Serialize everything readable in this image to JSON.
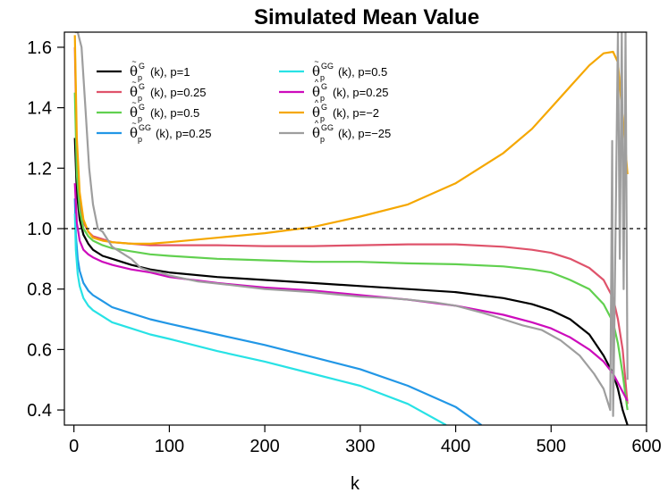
{
  "chart_data": {
    "type": "line",
    "title": "Simulated Mean Value",
    "xlabel": "k",
    "ylabel": "",
    "xlim": [
      -10,
      600
    ],
    "ylim": [
      0.35,
      1.65
    ],
    "xticks": [
      "0",
      "100",
      "200",
      "300",
      "400",
      "500",
      "600"
    ],
    "yticks": [
      "0.4",
      "0.6",
      "0.8",
      "1.0",
      "1.2",
      "1.4",
      "1.6"
    ],
    "reference_line": {
      "y": 1.0,
      "style": "dashed",
      "color": "#000000"
    },
    "series": [
      {
        "name": "θ̃pG (k), p=1",
        "symbol": "θ",
        "accent": "~",
        "sup": "G",
        "sub": "p",
        "suffix": "(k),  p=1",
        "color": "#000000",
        "x": [
          1,
          3,
          6,
          10,
          15,
          20,
          30,
          40,
          60,
          80,
          100,
          150,
          200,
          250,
          300,
          350,
          400,
          450,
          480,
          500,
          520,
          540,
          555,
          565,
          570,
          575,
          580
        ],
        "y": [
          1.3,
          1.12,
          1.03,
          0.98,
          0.95,
          0.93,
          0.91,
          0.9,
          0.88,
          0.865,
          0.855,
          0.84,
          0.83,
          0.82,
          0.81,
          0.8,
          0.79,
          0.77,
          0.75,
          0.73,
          0.7,
          0.65,
          0.58,
          0.52,
          0.47,
          0.4,
          0.35
        ]
      },
      {
        "name": "θ̃pG (k), p=0.25",
        "symbol": "θ",
        "accent": "~",
        "sup": "G",
        "sub": "p",
        "suffix": "(k),  p=0.25",
        "color": "#DF536B",
        "x": [
          1,
          3,
          6,
          10,
          15,
          20,
          30,
          40,
          60,
          80,
          100,
          150,
          200,
          250,
          300,
          350,
          400,
          450,
          480,
          500,
          520,
          540,
          555,
          565,
          570,
          575,
          580
        ],
        "y": [
          1.6,
          1.25,
          1.1,
          1.02,
          0.99,
          0.975,
          0.965,
          0.955,
          0.95,
          0.945,
          0.945,
          0.945,
          0.942,
          0.942,
          0.945,
          0.948,
          0.948,
          0.94,
          0.93,
          0.92,
          0.9,
          0.87,
          0.83,
          0.77,
          0.7,
          0.6,
          0.42
        ]
      },
      {
        "name": "θ̃pG (k), p=0.5",
        "symbol": "θ",
        "accent": "~",
        "sup": "G",
        "sub": "p",
        "suffix": "(k),  p=0.5",
        "color": "#61D04F",
        "x": [
          1,
          3,
          6,
          10,
          15,
          20,
          30,
          40,
          60,
          80,
          100,
          150,
          200,
          250,
          300,
          350,
          400,
          450,
          480,
          500,
          520,
          540,
          555,
          565,
          570,
          575,
          580
        ],
        "y": [
          1.45,
          1.18,
          1.06,
          1.0,
          0.975,
          0.96,
          0.945,
          0.935,
          0.925,
          0.915,
          0.91,
          0.9,
          0.895,
          0.89,
          0.89,
          0.885,
          0.882,
          0.875,
          0.865,
          0.855,
          0.83,
          0.8,
          0.75,
          0.69,
          0.62,
          0.52,
          0.4
        ]
      },
      {
        "name": "θ̃pGG (k), p=0.25",
        "symbol": "θ",
        "accent": "~",
        "sup": "GG",
        "sub": "p",
        "suffix": "(k),  p=0.25",
        "color": "#2297E6",
        "x": [
          1,
          2,
          4,
          6,
          10,
          15,
          20,
          30,
          40,
          60,
          80,
          100,
          150,
          200,
          250,
          300,
          350,
          400,
          427
        ],
        "y": [
          1.1,
          0.98,
          0.9,
          0.86,
          0.82,
          0.795,
          0.78,
          0.76,
          0.74,
          0.72,
          0.7,
          0.685,
          0.65,
          0.615,
          0.575,
          0.535,
          0.48,
          0.41,
          0.35
        ]
      },
      {
        "name": "θ̃pGG (k), p=0.5",
        "symbol": "θ",
        "accent": "~",
        "sup": "GG",
        "sub": "p",
        "suffix": "(k),  p=0.5",
        "color": "#28E2E5",
        "x": [
          1,
          2,
          4,
          6,
          10,
          15,
          20,
          30,
          40,
          60,
          80,
          100,
          150,
          200,
          250,
          300,
          350,
          390
        ],
        "y": [
          1.05,
          0.93,
          0.85,
          0.81,
          0.77,
          0.745,
          0.73,
          0.71,
          0.69,
          0.67,
          0.65,
          0.635,
          0.595,
          0.56,
          0.52,
          0.48,
          0.42,
          0.35
        ]
      },
      {
        "name": "θ̂pG (k), p=0.25",
        "symbol": "θ",
        "accent": "^",
        "sup": "G",
        "sub": "p",
        "suffix": "(k),  p=0.25",
        "color": "#CD0BBC",
        "x": [
          1,
          3,
          6,
          10,
          15,
          20,
          30,
          40,
          60,
          80,
          100,
          150,
          200,
          250,
          300,
          350,
          400,
          450,
          480,
          500,
          520,
          540,
          555,
          565,
          570,
          575,
          580
        ],
        "y": [
          1.15,
          1.02,
          0.96,
          0.93,
          0.915,
          0.905,
          0.89,
          0.88,
          0.865,
          0.855,
          0.84,
          0.82,
          0.805,
          0.795,
          0.78,
          0.765,
          0.745,
          0.715,
          0.69,
          0.67,
          0.64,
          0.6,
          0.56,
          0.52,
          0.49,
          0.46,
          0.43
        ]
      },
      {
        "name": "θ̂pG (k), p=−2",
        "symbol": "θ",
        "accent": "^",
        "sup": "G",
        "sub": "p",
        "suffix": "(k),  p=−2",
        "color": "#F5A700",
        "x": [
          1,
          3,
          6,
          10,
          15,
          20,
          30,
          40,
          60,
          80,
          100,
          150,
          200,
          250,
          300,
          350,
          400,
          450,
          480,
          500,
          520,
          540,
          555,
          565,
          570,
          574,
          577,
          580
        ],
        "y": [
          1.64,
          1.3,
          1.12,
          1.03,
          0.99,
          0.97,
          0.96,
          0.955,
          0.95,
          0.95,
          0.955,
          0.97,
          0.985,
          1.005,
          1.04,
          1.08,
          1.15,
          1.25,
          1.33,
          1.4,
          1.47,
          1.54,
          1.58,
          1.585,
          1.55,
          1.4,
          1.3,
          1.18
        ]
      },
      {
        "name": "θ̂pGG (k), p=−25",
        "symbol": "θ",
        "accent": "^",
        "sup": "GG",
        "sub": "p",
        "suffix": "(k),  p=−25",
        "color": "#9E9E9E",
        "x": [
          1,
          4,
          8,
          12,
          16,
          20,
          25,
          30,
          40,
          50,
          60,
          70,
          80,
          90,
          100,
          130,
          160,
          200,
          250,
          300,
          330,
          350,
          380,
          400,
          430,
          450,
          470,
          490,
          510,
          530,
          545,
          555,
          562,
          564,
          565,
          566,
          568,
          570,
          572,
          574,
          576,
          578,
          580
        ],
        "y": [
          1.65,
          1.65,
          1.6,
          1.4,
          1.2,
          1.08,
          1.0,
          0.99,
          0.94,
          0.92,
          0.9,
          0.87,
          0.86,
          0.855,
          0.845,
          0.825,
          0.815,
          0.8,
          0.79,
          0.775,
          0.77,
          0.765,
          0.755,
          0.745,
          0.72,
          0.7,
          0.68,
          0.665,
          0.63,
          0.58,
          0.52,
          0.47,
          0.4,
          1.29,
          0.38,
          0.6,
          1.1,
          1.65,
          0.9,
          1.65,
          0.8,
          1.65,
          0.5
        ]
      }
    ]
  }
}
